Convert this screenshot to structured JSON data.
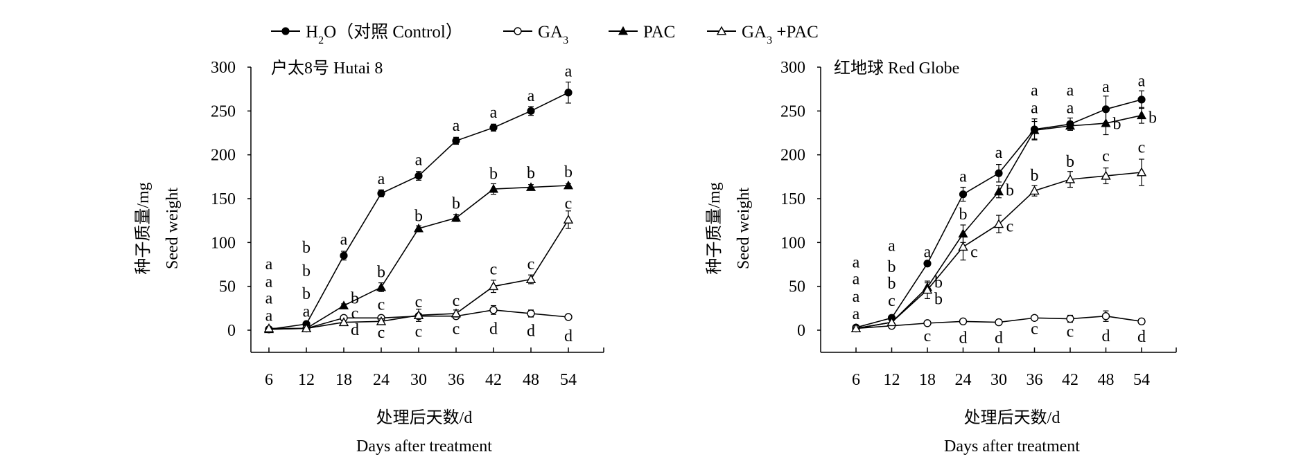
{
  "legend": [
    {
      "name": "H2O (对照 Control)",
      "main": "H",
      "sub": "2",
      "rest": "O（对照 Control）",
      "marker": "filled-circle"
    },
    {
      "name": "GA3",
      "main": "GA",
      "sub": "3",
      "rest": "",
      "marker": "open-circle"
    },
    {
      "name": "PAC",
      "main": "PAC",
      "sub": "",
      "rest": "",
      "marker": "filled-triangle"
    },
    {
      "name": "GA3 +PAC",
      "main": "GA",
      "sub": "3",
      "rest": " +PAC",
      "marker": "open-triangle"
    }
  ],
  "chart_data": [
    {
      "type": "line",
      "title": "户太8号  Hutai 8",
      "xlabel": "处理后天数/d",
      "xlabel_en": "Days after treatment",
      "ylabel": "种子质量/mg",
      "ylabel_en": "Seed weight",
      "x": [
        6,
        12,
        18,
        24,
        30,
        36,
        42,
        48,
        54
      ],
      "yticks": [
        0,
        50,
        100,
        150,
        200,
        250,
        300
      ],
      "ylim": [
        0,
        300
      ],
      "series": [
        {
          "name": "H2O",
          "marker": "filled-circle",
          "values": [
            1,
            7,
            85,
            156,
            176,
            216,
            231,
            250,
            271
          ],
          "err": [
            2,
            2,
            5,
            4,
            5,
            4,
            4,
            5,
            12
          ]
        },
        {
          "name": "GA3",
          "marker": "open-circle",
          "values": [
            1,
            2,
            14,
            14,
            16,
            16,
            23,
            19,
            15
          ],
          "err": [
            1,
            1,
            2,
            3,
            3,
            3,
            5,
            4,
            2
          ]
        },
        {
          "name": "PAC",
          "marker": "filled-triangle",
          "values": [
            1,
            2,
            28,
            49,
            116,
            128,
            161,
            163,
            165
          ],
          "err": [
            1,
            1,
            2,
            5,
            3,
            4,
            6,
            3,
            2
          ]
        },
        {
          "name": "GA3+PAC",
          "marker": "open-triangle",
          "values": [
            2,
            2,
            9,
            10,
            17,
            19,
            50,
            58,
            126
          ],
          "err": [
            1,
            1,
            2,
            3,
            7,
            4,
            7,
            5,
            10
          ]
        }
      ],
      "annotations": [
        {
          "x": 6,
          "y": 75,
          "t": "a"
        },
        {
          "x": 6,
          "y": 55,
          "t": "a"
        },
        {
          "x": 6,
          "y": 36,
          "t": "a"
        },
        {
          "x": 6,
          "y": 16,
          "t": "a"
        },
        {
          "x": 12,
          "y": 94,
          "t": "b"
        },
        {
          "x": 12,
          "y": 67,
          "t": "b"
        },
        {
          "x": 12,
          "y": 41,
          "t": "b"
        },
        {
          "x": 12,
          "y": 21,
          "t": "a"
        },
        {
          "x": 18,
          "y": 103,
          "t": "a"
        },
        {
          "x": 18,
          "y": 36,
          "t": "b",
          "side": "right"
        },
        {
          "x": 18,
          "y": 19,
          "t": "c",
          "side": "right"
        },
        {
          "x": 18,
          "y": 0,
          "t": "d",
          "side": "right"
        },
        {
          "x": 24,
          "y": 172,
          "t": "a"
        },
        {
          "x": 24,
          "y": 66,
          "t": "b"
        },
        {
          "x": 24,
          "y": 29,
          "t": "c"
        },
        {
          "x": 24,
          "y": -3,
          "t": "c"
        },
        {
          "x": 30,
          "y": 194,
          "t": "a"
        },
        {
          "x": 30,
          "y": 130,
          "t": "b"
        },
        {
          "x": 30,
          "y": 32,
          "t": "c"
        },
        {
          "x": 30,
          "y": -2,
          "t": "c"
        },
        {
          "x": 36,
          "y": 233,
          "t": "a"
        },
        {
          "x": 36,
          "y": 144,
          "t": "b"
        },
        {
          "x": 36,
          "y": 33,
          "t": "c"
        },
        {
          "x": 36,
          "y": 1,
          "t": "c"
        },
        {
          "x": 42,
          "y": 248,
          "t": "a"
        },
        {
          "x": 42,
          "y": 178,
          "t": "b"
        },
        {
          "x": 42,
          "y": 69,
          "t": "c"
        },
        {
          "x": 42,
          "y": 1,
          "t": "d"
        },
        {
          "x": 48,
          "y": 267,
          "t": "a"
        },
        {
          "x": 48,
          "y": 179,
          "t": "b"
        },
        {
          "x": 48,
          "y": 75,
          "t": "c"
        },
        {
          "x": 48,
          "y": -1,
          "t": "d"
        },
        {
          "x": 54,
          "y": 295,
          "t": "a"
        },
        {
          "x": 54,
          "y": 180,
          "t": "b"
        },
        {
          "x": 54,
          "y": 144,
          "t": "c"
        },
        {
          "x": 54,
          "y": -7,
          "t": "d"
        }
      ]
    },
    {
      "type": "line",
      "title": "红地球 Red Globe",
      "xlabel": "处理后天数/d",
      "xlabel_en": "Days after treatment",
      "ylabel": "种子质量/mg",
      "ylabel_en": "Seed weight",
      "x": [
        6,
        12,
        18,
        24,
        30,
        36,
        42,
        48,
        54
      ],
      "yticks": [
        0,
        50,
        100,
        150,
        200,
        250,
        300
      ],
      "ylim": [
        0,
        300
      ],
      "series": [
        {
          "name": "H2O",
          "marker": "filled-circle",
          "values": [
            3,
            14,
            76,
            155,
            179,
            229,
            235,
            252,
            263
          ],
          "err": [
            2,
            3,
            3,
            8,
            10,
            12,
            7,
            15,
            10
          ]
        },
        {
          "name": "GA3",
          "marker": "open-circle",
          "values": [
            2,
            5,
            8,
            10,
            9,
            14,
            13,
            16,
            10
          ],
          "err": [
            1,
            1,
            2,
            2,
            3,
            2,
            4,
            6,
            3
          ]
        },
        {
          "name": "PAC",
          "marker": "filled-triangle",
          "values": [
            2,
            9,
            49,
            110,
            158,
            228,
            233,
            236,
            245
          ],
          "err": [
            1,
            2,
            5,
            10,
            7,
            10,
            5,
            13,
            9
          ]
        },
        {
          "name": "GA3+PAC",
          "marker": "open-triangle",
          "values": [
            2,
            9,
            46,
            95,
            121,
            159,
            172,
            176,
            180
          ],
          "err": [
            1,
            2,
            10,
            15,
            10,
            6,
            9,
            9,
            15
          ]
        }
      ],
      "annotations": [
        {
          "x": 6,
          "y": 77,
          "t": "a"
        },
        {
          "x": 6,
          "y": 58,
          "t": "a"
        },
        {
          "x": 6,
          "y": 38,
          "t": "a"
        },
        {
          "x": 6,
          "y": 18,
          "t": "a"
        },
        {
          "x": 12,
          "y": 96,
          "t": "a"
        },
        {
          "x": 12,
          "y": 72,
          "t": "b"
        },
        {
          "x": 12,
          "y": 53,
          "t": "b"
        },
        {
          "x": 12,
          "y": 33,
          "t": "c"
        },
        {
          "x": 18,
          "y": 89,
          "t": "a"
        },
        {
          "x": 18,
          "y": 54,
          "t": "b",
          "side": "right"
        },
        {
          "x": 18,
          "y": 35,
          "t": "b",
          "side": "right"
        },
        {
          "x": 18,
          "y": -7,
          "t": "c"
        },
        {
          "x": 24,
          "y": 175,
          "t": "a"
        },
        {
          "x": 24,
          "y": 132,
          "t": "b"
        },
        {
          "x": 24,
          "y": 89,
          "t": "c",
          "side": "right"
        },
        {
          "x": 24,
          "y": -9,
          "t": "d"
        },
        {
          "x": 30,
          "y": 202,
          "t": "a"
        },
        {
          "x": 30,
          "y": 159,
          "t": "b",
          "side": "right"
        },
        {
          "x": 30,
          "y": 118,
          "t": "c",
          "side": "right"
        },
        {
          "x": 30,
          "y": -9,
          "t": "d"
        },
        {
          "x": 36,
          "y": 273,
          "t": "a"
        },
        {
          "x": 36,
          "y": 253,
          "t": "a"
        },
        {
          "x": 36,
          "y": 176,
          "t": "b"
        },
        {
          "x": 36,
          "y": 1,
          "t": "c"
        },
        {
          "x": 42,
          "y": 273,
          "t": "a"
        },
        {
          "x": 42,
          "y": 253,
          "t": "a"
        },
        {
          "x": 42,
          "y": 192,
          "t": "b"
        },
        {
          "x": 42,
          "y": -2,
          "t": "c"
        },
        {
          "x": 48,
          "y": 277,
          "t": "a"
        },
        {
          "x": 48,
          "y": 235,
          "t": "b",
          "side": "right"
        },
        {
          "x": 48,
          "y": 198,
          "t": "c"
        },
        {
          "x": 48,
          "y": -7,
          "t": "d"
        },
        {
          "x": 54,
          "y": 284,
          "t": "a"
        },
        {
          "x": 54,
          "y": 242,
          "t": "b",
          "side": "right"
        },
        {
          "x": 54,
          "y": 208,
          "t": "c"
        },
        {
          "x": 54,
          "y": -8,
          "t": "d"
        }
      ]
    }
  ]
}
